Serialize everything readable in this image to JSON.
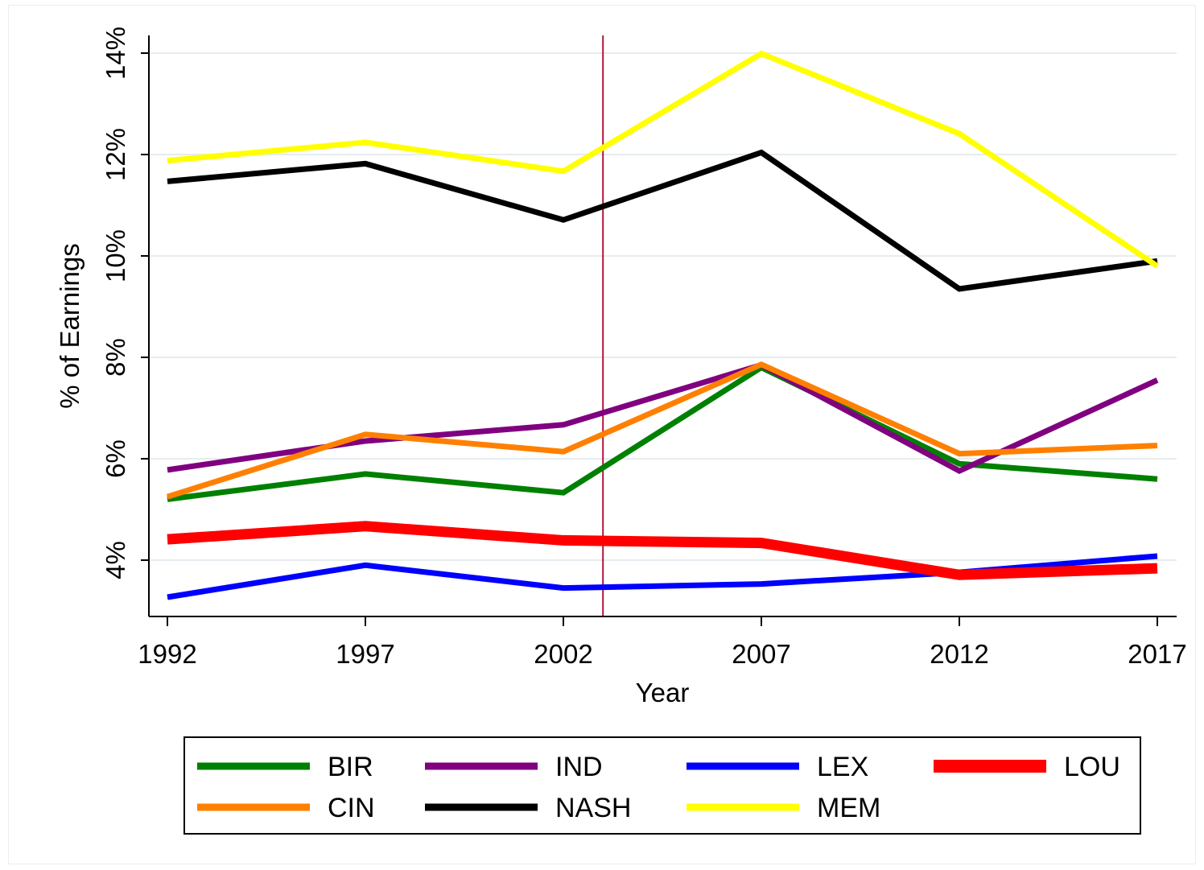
{
  "chart_data": {
    "type": "line",
    "title": "",
    "xlabel": "Year",
    "ylabel": "% of Earnings",
    "x": [
      1992,
      1997,
      2002,
      2007,
      2012,
      2017
    ],
    "xlim": [
      1992,
      2017
    ],
    "ylim": [
      3.0,
      14.4
    ],
    "y_ticks": [
      4,
      6,
      8,
      10,
      12,
      14
    ],
    "y_tick_labels": [
      "4%",
      "6%",
      "8%",
      "10%",
      "12%",
      "14%"
    ],
    "x_tick_labels": [
      "1992",
      "1997",
      "2002",
      "2007",
      "2012",
      "2017"
    ],
    "grid": true,
    "reference_line": {
      "x": 2003,
      "color": "#b0173a"
    },
    "legend_position": "bottom",
    "series": [
      {
        "name": "BIR",
        "color": "#008000",
        "values": [
          5.2,
          5.7,
          5.33,
          7.8,
          5.9,
          5.6
        ]
      },
      {
        "name": "IND",
        "color": "#800080",
        "values": [
          5.78,
          6.35,
          6.67,
          7.85,
          5.76,
          7.55
        ]
      },
      {
        "name": "LEX",
        "color": "#0000ff",
        "values": [
          3.27,
          3.9,
          3.45,
          3.53,
          3.76,
          4.08
        ]
      },
      {
        "name": "LOU",
        "color": "#ff0000",
        "thick": true,
        "values": [
          4.41,
          4.67,
          4.39,
          4.34,
          3.71,
          3.84
        ]
      },
      {
        "name": "CIN",
        "color": "#ff8000",
        "values": [
          5.25,
          6.48,
          6.14,
          7.86,
          6.1,
          6.26
        ]
      },
      {
        "name": "NASH",
        "color": "#000000",
        "values": [
          11.47,
          11.82,
          10.71,
          12.04,
          9.35,
          9.9
        ]
      },
      {
        "name": "MEM",
        "color": "#ffff00",
        "values": [
          11.88,
          12.24,
          11.67,
          13.99,
          12.41,
          9.8
        ]
      }
    ]
  }
}
